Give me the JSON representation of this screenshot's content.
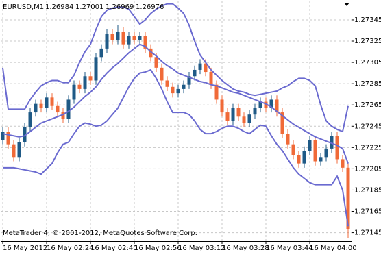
{
  "chart_data": {
    "type": "candlestick",
    "title": "EURUSD,M1",
    "header_values": [
      "1.26984",
      "1.27001",
      "1.26969",
      "1.26976"
    ],
    "footer": "MetaTrader 4, © 2001-2012, MetaQuotes Software Corp.",
    "categories": [
      "16 May 2012",
      null,
      null,
      null,
      null,
      null,
      null,
      null,
      "16 May 02:24",
      null,
      null,
      null,
      null,
      null,
      null,
      null,
      "16 May 02:40",
      null,
      null,
      null,
      null,
      null,
      null,
      null,
      "16 May 02:56",
      null,
      null,
      null,
      null,
      null,
      null,
      null,
      "16 May 03:12",
      null,
      null,
      null,
      null,
      null,
      null,
      null,
      "16 May 03:28",
      null,
      null,
      null,
      null,
      null,
      null,
      null,
      "16 May 03:44",
      null,
      null,
      null,
      null,
      null,
      null,
      null,
      "16 May 04:00",
      null,
      null,
      null,
      null,
      null,
      null,
      null
    ],
    "open": [
      1.27232,
      1.2724,
      1.27228,
      1.27216,
      1.2723,
      1.27244,
      1.27258,
      1.27266,
      1.27262,
      1.27272,
      1.27264,
      1.27258,
      1.27252,
      1.2727,
      1.27284,
      1.2728,
      1.27292,
      1.27288,
      1.2731,
      1.27318,
      1.27332,
      1.27326,
      1.27334,
      1.27322,
      1.2733,
      1.27326,
      1.2733,
      1.27318,
      1.2731,
      1.273,
      1.27288,
      1.27282,
      1.27276,
      1.2728,
      1.27284,
      1.27292,
      1.27298,
      1.27304,
      1.27296,
      1.27284,
      1.2727,
      1.27258,
      1.2725,
      1.27262,
      1.27254,
      1.27248,
      1.27256,
      1.27262,
      1.27268,
      1.27262,
      1.2727,
      1.27258,
      1.27238,
      1.27228,
      1.27218,
      1.2721,
      1.27222,
      1.27232,
      1.27212,
      1.27216,
      1.27224,
      1.27236,
      1.27214,
      1.27206
    ],
    "high": [
      1.27244,
      1.27244,
      1.27232,
      1.27234,
      1.27248,
      1.27262,
      1.2727,
      1.2727,
      1.27276,
      1.27276,
      1.27268,
      1.27262,
      1.27274,
      1.27288,
      1.27288,
      1.27296,
      1.27296,
      1.27314,
      1.27322,
      1.27336,
      1.27336,
      1.2734,
      1.27338,
      1.27334,
      1.27334,
      1.27334,
      1.27334,
      1.27322,
      1.27314,
      1.27304,
      1.27292,
      1.27286,
      1.27284,
      1.27288,
      1.27296,
      1.27302,
      1.27308,
      1.27308,
      1.273,
      1.27288,
      1.27274,
      1.27262,
      1.27266,
      1.27266,
      1.27258,
      1.2726,
      1.27266,
      1.27272,
      1.27272,
      1.27274,
      1.27274,
      1.27262,
      1.27242,
      1.27232,
      1.27222,
      1.27226,
      1.27236,
      1.27236,
      1.2722,
      1.27228,
      1.2724,
      1.2724,
      1.27218,
      1.2721
    ],
    "low": [
      1.27228,
      1.27224,
      1.27212,
      1.27212,
      1.27226,
      1.2724,
      1.27254,
      1.27258,
      1.27258,
      1.2726,
      1.27254,
      1.27248,
      1.27248,
      1.27266,
      1.27276,
      1.27276,
      1.27284,
      1.27284,
      1.27306,
      1.27314,
      1.27322,
      1.27322,
      1.27318,
      1.27318,
      1.27322,
      1.27322,
      1.27314,
      1.27306,
      1.27296,
      1.27284,
      1.27278,
      1.27272,
      1.27272,
      1.27276,
      1.2728,
      1.27288,
      1.27294,
      1.27292,
      1.2728,
      1.27266,
      1.27254,
      1.27246,
      1.27246,
      1.2725,
      1.27244,
      1.27244,
      1.27252,
      1.27258,
      1.27258,
      1.27258,
      1.27254,
      1.27234,
      1.27224,
      1.27214,
      1.27206,
      1.27206,
      1.27218,
      1.27208,
      1.27208,
      1.27212,
      1.2722,
      1.2721,
      1.27202,
      1.2714
    ],
    "close": [
      1.2724,
      1.27228,
      1.27216,
      1.2723,
      1.27244,
      1.27258,
      1.27266,
      1.27262,
      1.27272,
      1.27264,
      1.27258,
      1.27252,
      1.2727,
      1.27284,
      1.2728,
      1.27292,
      1.27288,
      1.2731,
      1.27318,
      1.27332,
      1.27326,
      1.27334,
      1.27322,
      1.2733,
      1.27326,
      1.2733,
      1.27318,
      1.2731,
      1.273,
      1.27288,
      1.27282,
      1.27276,
      1.2728,
      1.27284,
      1.27292,
      1.27298,
      1.27304,
      1.27296,
      1.27284,
      1.2727,
      1.27258,
      1.2725,
      1.27262,
      1.27254,
      1.27248,
      1.27256,
      1.27262,
      1.27268,
      1.27262,
      1.2727,
      1.27258,
      1.27238,
      1.27228,
      1.27218,
      1.2721,
      1.27222,
      1.27232,
      1.27212,
      1.27216,
      1.27224,
      1.27236,
      1.27214,
      1.27206,
      1.27148
    ],
    "bands": [
      {
        "color": "#6a6ad0",
        "values": [
          1.273,
          1.27261,
          1.27261,
          1.27261,
          1.27261,
          1.2727,
          1.27277,
          1.27283,
          1.27286,
          1.27288,
          1.27288,
          1.27286,
          1.27286,
          1.27293,
          1.27305,
          1.27315,
          1.27322,
          1.27336,
          1.27348,
          1.27354,
          1.27356,
          1.27357,
          1.27357,
          1.27355,
          1.27348,
          1.27341,
          1.27345,
          1.27351,
          1.27355,
          1.27358,
          1.2736,
          1.2736,
          1.27356,
          1.27351,
          1.2734,
          1.27325,
          1.27312,
          1.27305,
          1.27298,
          1.27293,
          1.27288,
          1.27284,
          1.2728,
          1.27278,
          1.27277,
          1.27275,
          1.27274,
          1.27275,
          1.27276,
          1.27277,
          1.27278,
          1.27281,
          1.27283,
          1.27287,
          1.2729,
          1.2729,
          1.27288,
          1.27283,
          1.27265,
          1.2725,
          1.27245,
          1.27242,
          1.2724,
          1.27264
        ]
      },
      {
        "color": "#6a6ad0",
        "values": [
          1.27238,
          1.27237,
          1.27236,
          1.27235,
          1.27236,
          1.2724,
          1.27244,
          1.27248,
          1.2725,
          1.27252,
          1.27254,
          1.27256,
          1.27259,
          1.27263,
          1.27268,
          1.27273,
          1.27277,
          1.27282,
          1.27289,
          1.27295,
          1.273,
          1.27304,
          1.27309,
          1.27314,
          1.27318,
          1.27322,
          1.2732,
          1.27315,
          1.27311,
          1.27306,
          1.27302,
          1.27299,
          1.27295,
          1.27293,
          1.27291,
          1.27289,
          1.27287,
          1.27286,
          1.27284,
          1.27283,
          1.27281,
          1.27279,
          1.27277,
          1.27276,
          1.27274,
          1.27272,
          1.2727,
          1.27268,
          1.27266,
          1.27263,
          1.27259,
          1.27255,
          1.27251,
          1.27247,
          1.27244,
          1.27241,
          1.27238,
          1.27235,
          1.27233,
          1.27231,
          1.27229,
          1.27227,
          1.27224,
          1.2721
        ]
      },
      {
        "color": "#6a6ad0",
        "values": [
          1.27206,
          1.27206,
          1.27206,
          1.27205,
          1.27204,
          1.27203,
          1.27202,
          1.272,
          1.27205,
          1.2721,
          1.2722,
          1.27228,
          1.2723,
          1.27238,
          1.27245,
          1.27248,
          1.27247,
          1.27245,
          1.27246,
          1.2725,
          1.27256,
          1.27262,
          1.27272,
          1.27282,
          1.2729,
          1.27295,
          1.27296,
          1.27298,
          1.2729,
          1.2728,
          1.27268,
          1.27258,
          1.27258,
          1.27258,
          1.27256,
          1.2725,
          1.27242,
          1.27238,
          1.27238,
          1.2724,
          1.27243,
          1.27245,
          1.27245,
          1.27243,
          1.2724,
          1.27238,
          1.27242,
          1.27246,
          1.27245,
          1.27236,
          1.27228,
          1.27222,
          1.27214,
          1.27206,
          1.272,
          1.27196,
          1.27192,
          1.2719,
          1.2719,
          1.2719,
          1.2719,
          1.27198,
          1.27185,
          1.27151
        ]
      }
    ],
    "up_color": "#1f5a86",
    "down_color": "#f06a38",
    "ylim": [
      1.27137,
      1.27363
    ],
    "yticks": [
      1.27345,
      1.27325,
      1.27305,
      1.27285,
      1.27265,
      1.27245,
      1.27225,
      1.27205,
      1.27185,
      1.27165,
      1.27145
    ],
    "grid": true
  }
}
